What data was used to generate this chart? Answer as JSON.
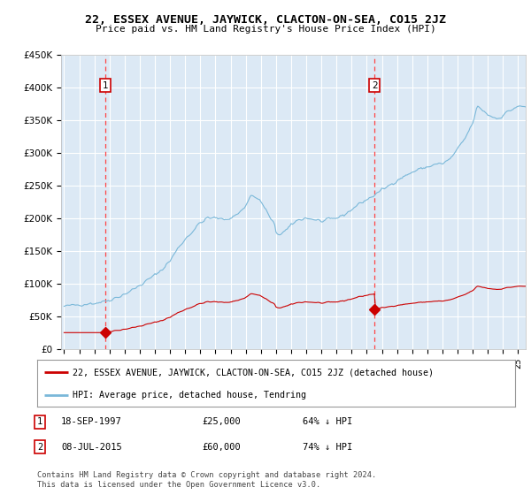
{
  "title": "22, ESSEX AVENUE, JAYWICK, CLACTON-ON-SEA, CO15 2JZ",
  "subtitle": "Price paid vs. HM Land Registry's House Price Index (HPI)",
  "plot_bg_color": "#dce9f5",
  "sale1_date_num": 1997.72,
  "sale1_price": 25000,
  "sale1_label": "1",
  "sale1_date_str": "18-SEP-1997",
  "sale1_price_str": "£25,000",
  "sale1_pct": "64% ↓ HPI",
  "sale2_date_num": 2015.52,
  "sale2_price": 60000,
  "sale2_label": "2",
  "sale2_date_str": "08-JUL-2015",
  "sale2_price_str": "£60,000",
  "sale2_pct": "74% ↓ HPI",
  "legend_line1": "22, ESSEX AVENUE, JAYWICK, CLACTON-ON-SEA, CO15 2JZ (detached house)",
  "legend_line2": "HPI: Average price, detached house, Tendring",
  "footer": "Contains HM Land Registry data © Crown copyright and database right 2024.\nThis data is licensed under the Open Government Licence v3.0.",
  "hpi_color": "#7ab8d9",
  "sale_color": "#cc0000",
  "dashed_color": "#ff4444",
  "ylim_max": 450000,
  "ylim_min": 0,
  "xlim_min": 1994.8,
  "xlim_max": 2025.5,
  "hpi_at_sale1": 69500,
  "hpi_at_sale2": 232000
}
